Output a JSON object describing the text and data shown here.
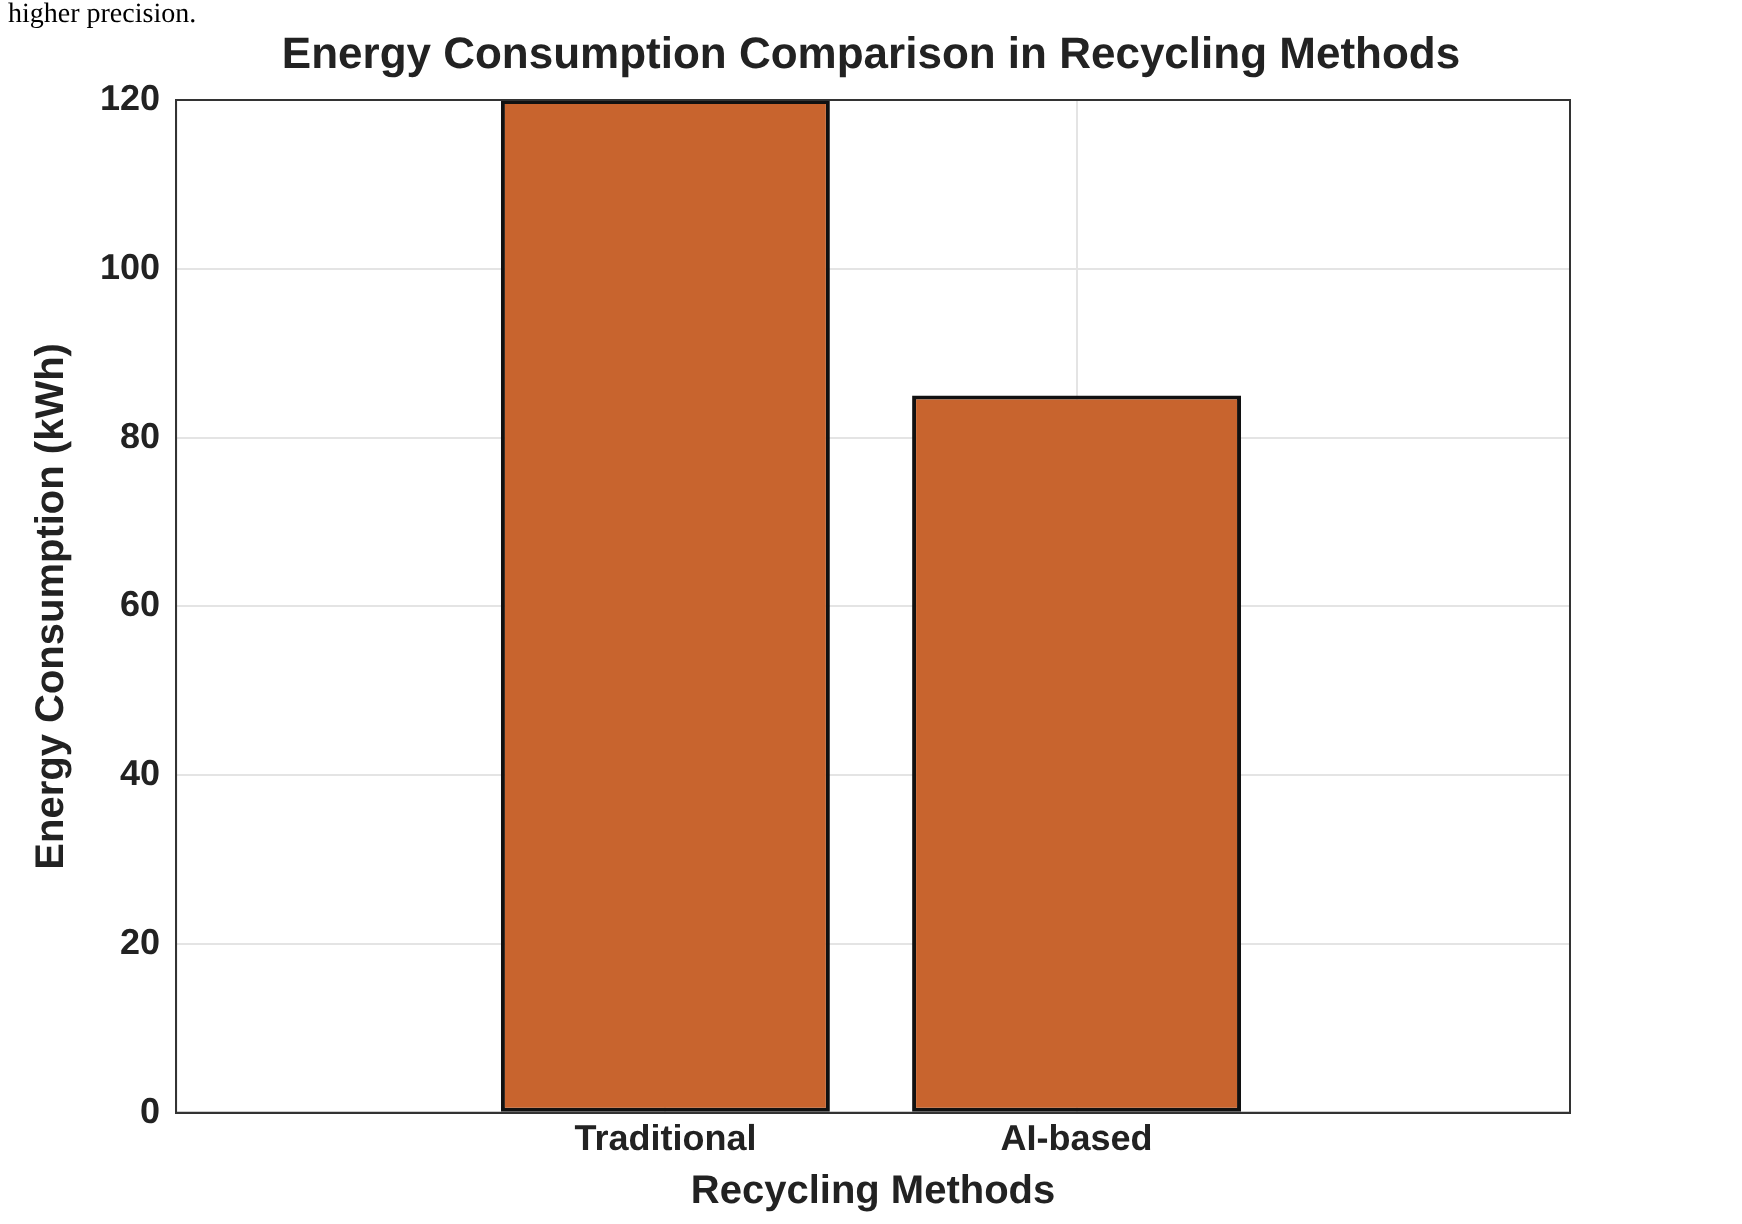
{
  "chart_data": {
    "type": "bar",
    "title": "Energy Consumption Comparison in Recycling Methods",
    "xlabel": "Recycling Methods",
    "ylabel": "Energy Consumption (kWh)",
    "annotations": [
      "higher precision."
    ],
    "categories": [
      "Traditional",
      "AI-based"
    ],
    "values": [
      120,
      85
    ],
    "color": "#c8642e",
    "ylim": [
      0,
      120
    ],
    "yticks": [
      0,
      20,
      40,
      60,
      80,
      100,
      120
    ],
    "grid": true,
    "legend": false
  }
}
